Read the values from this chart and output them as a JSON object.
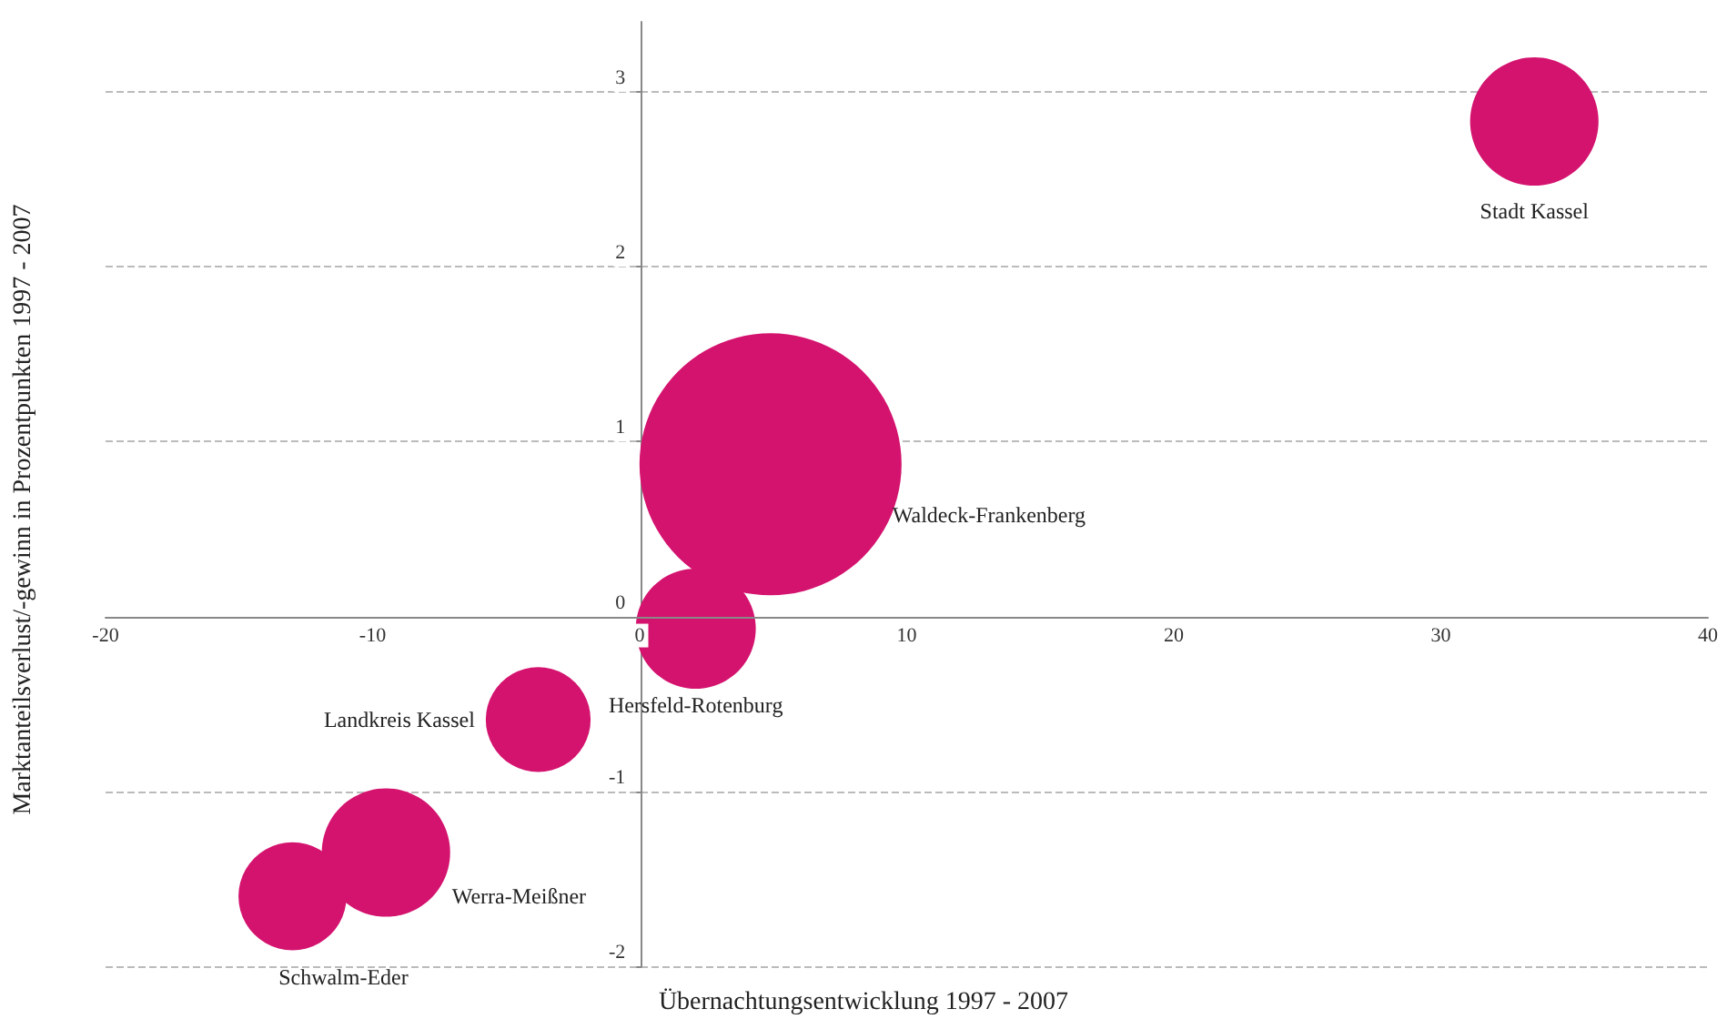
{
  "chart_data": {
    "type": "bubble",
    "xlabel": "Übernachtungsentwicklung 1997 - 2007",
    "ylabel": "Marktanteilsverlust/-gewinn in Prozentpunkten 1997 - 2007",
    "xlim": [
      -20,
      40
    ],
    "xticks": [
      -20,
      -10,
      0,
      10,
      20,
      30,
      40
    ],
    "ylim": [
      -2,
      3.4
    ],
    "yticks": [
      -2,
      -1,
      0,
      1,
      2,
      3
    ],
    "grid": "y",
    "legend": false,
    "series": [
      {
        "name": "Stadt Kassel",
        "color": "#d4136f",
        "x": [
          33.5
        ],
        "values": [
          2.83
        ],
        "sizes": [
          0.24
        ]
      },
      {
        "name": "Waldeck-Frankenberg",
        "color": "#d4136f",
        "x": [
          4.9
        ],
        "values": [
          0.87
        ],
        "sizes": [
          1
        ]
      },
      {
        "name": "Hersfeld-Rotenburg",
        "color": "#d4136f",
        "x": [
          2.1
        ],
        "values": [
          -0.07
        ],
        "sizes": [
          0.21
        ]
      },
      {
        "name": "Landkreis Kassel",
        "color": "#d4136f",
        "x": [
          -3.8
        ],
        "values": [
          -0.59
        ],
        "sizes": [
          0.16
        ]
      },
      {
        "name": "Werra-Meißner",
        "color": "#d4136f",
        "x": [
          -9.5
        ],
        "values": [
          -1.35
        ],
        "sizes": [
          0.24
        ]
      },
      {
        "name": "Schwalm-Eder",
        "color": "#d4136f",
        "x": [
          -13
        ],
        "values": [
          -1.6
        ],
        "sizes": [
          0.17
        ]
      }
    ]
  }
}
